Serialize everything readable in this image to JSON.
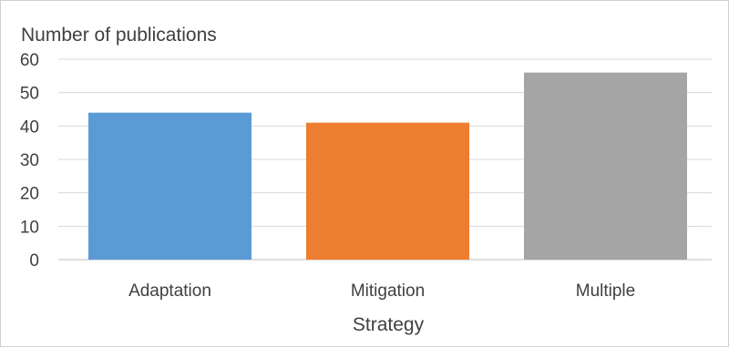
{
  "chart_data": {
    "type": "bar",
    "title": "",
    "ylabel": "Number of publications",
    "xlabel": "Strategy",
    "categories": [
      "Adaptation",
      "Mitigation",
      "Multiple"
    ],
    "values": [
      44,
      41,
      56
    ],
    "colors": [
      "#5b9bd5",
      "#ed7d31",
      "#a5a5a5"
    ],
    "ylim": [
      0,
      60
    ],
    "yticks": [
      0,
      10,
      20,
      30,
      40,
      50,
      60
    ],
    "grid": true,
    "legend": "none"
  }
}
